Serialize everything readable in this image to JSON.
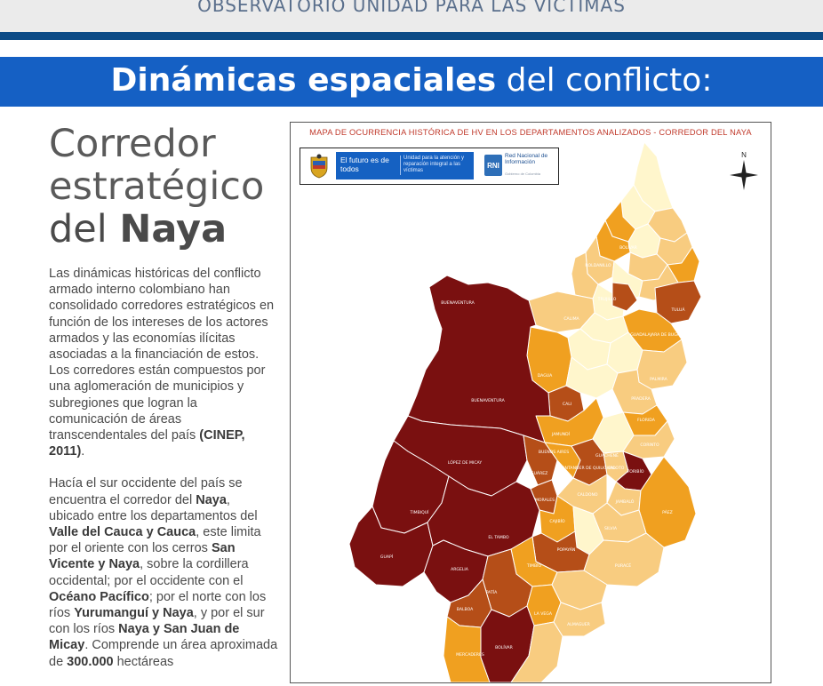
{
  "header": {
    "observatorio": "OBSERVATORIO UNIDAD PARA LAS VÍCTIMAS",
    "title_bold": "Dinámicas espaciales",
    "title_rest": " del conflicto:"
  },
  "heading": {
    "line1": "Corredor",
    "line2": "estratégico",
    "line3_prefix": "del ",
    "line3_bold": "Naya"
  },
  "paragraph1": {
    "text": "Las dinámicas históricas del conflicto armado interno colombiano han consolidado corredores estratégicos en función de los intereses de los actores armados y las economías ilícitas asociadas a la financiación de estos. Los corredores están compuestos por una aglomeración de municipios y subregiones que logran la comunicación de áreas transcendentales del país ",
    "citation": "(CINEP, 2011)",
    "end": "."
  },
  "paragraph2": {
    "t1": "Hacía el sur occidente del país se encuentra el corredor del ",
    "b1": "Naya",
    "t2": ", ubicado entre los departamentos del ",
    "b2": "Valle del Cauca y Cauca",
    "t3": ", este limita por el oriente con los cerros ",
    "b3": "San Vicente y Naya",
    "t4": ", sobre la cordillera occidental; por el occidente con el ",
    "b4": "Océano Pacífico",
    "t5": "; por el norte con los ríos ",
    "b5": "Yurumanguí y Naya",
    "t6": ", y por el sur con los ríos ",
    "b6": "Naya y San Juan de Micay",
    "t7": ". Comprende un área aproximada de ",
    "b7": "300.000",
    "t8": " hectáreas"
  },
  "map": {
    "title": "MAPA DE OCURRENCIA HISTÓRICA DE HV EN LOS DEPARTAMENTOS ANALIZADOS - CORREDOR DEL NAYA",
    "logo_slogan": "El futuro es de todos",
    "logo_unit": "Unidad para la atención y reparación integral a las víctimas",
    "rni_title": "Red Nacional de Información",
    "rni_sub": "Gobierno de Colombia",
    "north": "N",
    "colors": {
      "darkest": "#7a1010",
      "dark": "#b54e18",
      "medium": "#f0a020",
      "light": "#f8cc80",
      "lightest": "#fff6cc"
    },
    "labels": [
      "BUENAVENTURA",
      "BUENAVENTURA",
      "LÓPEZ DE MICAY",
      "TIMBIQUÍ",
      "GUAPÍ",
      "EL TAMBO",
      "ARGELIA",
      "BALBOA",
      "PATÍA",
      "BOLÍVAR",
      "MERCADERES",
      "CALI",
      "DAGUA",
      "JAMUNDÍ",
      "TULUÁ",
      "GUADALAJARA DE BUGA",
      "PALMIRA",
      "PRADERA",
      "FLORIDA",
      "CORINTO",
      "TORIBÍO",
      "JAMBALÓ",
      "PÁEZ",
      "CALOTO",
      "SANTANDER DE QUILICHAO",
      "BUENOS AIRES",
      "SUÁREZ",
      "MORALES",
      "CAJIBÍO",
      "CALDONO",
      "SILVIA",
      "POPAYÁN",
      "TIMBÍO",
      "PURACÉ",
      "LA VEGA",
      "ALMAGUER",
      "GUACHENÉ",
      "ROLDANILLO",
      "TRUJILLO",
      "BOLÍVAR",
      "CALIMA"
    ]
  }
}
